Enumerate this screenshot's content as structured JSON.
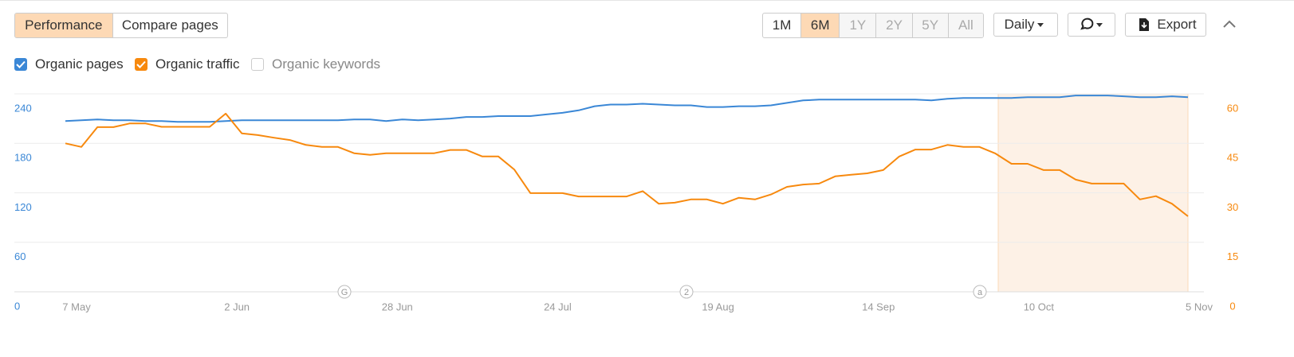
{
  "toolbar": {
    "tabs": [
      "Performance",
      "Compare pages"
    ],
    "ranges": [
      "1M",
      "6M",
      "1Y",
      "2Y",
      "5Y",
      "All"
    ],
    "interval": "Daily",
    "export": "Export"
  },
  "chart_data": {
    "type": "line",
    "categories": [
      "7 May",
      null,
      null,
      null,
      null,
      null,
      null,
      null,
      null,
      null,
      "2 Jun",
      null,
      null,
      null,
      null,
      null,
      null,
      null,
      null,
      null,
      "28 Jun",
      null,
      null,
      null,
      null,
      null,
      null,
      null,
      null,
      null,
      "24 Jul",
      null,
      null,
      null,
      null,
      null,
      null,
      null,
      null,
      null,
      "19 Aug",
      null,
      null,
      null,
      null,
      null,
      null,
      null,
      null,
      null,
      "14 Sep",
      null,
      null,
      null,
      null,
      null,
      null,
      null,
      null,
      null,
      "10 Oct",
      null,
      null,
      null,
      null,
      null,
      null,
      null,
      null,
      null,
      "5 Nov"
    ],
    "series": [
      {
        "name": "Organic pages",
        "color": "#3a87d6",
        "axis": "y",
        "values": [
          207,
          208,
          209,
          208,
          208,
          207,
          207,
          206,
          206,
          206,
          207,
          208,
          208,
          208,
          208,
          208,
          208,
          208,
          209,
          209,
          207,
          209,
          208,
          209,
          210,
          212,
          212,
          213,
          213,
          213,
          215,
          217,
          220,
          225,
          227,
          227,
          228,
          227,
          226,
          226,
          224,
          224,
          225,
          225,
          226,
          229,
          232,
          233,
          233,
          233,
          233,
          233,
          233,
          233,
          232,
          234,
          235,
          235,
          235,
          235,
          236,
          236,
          236,
          238,
          238,
          238,
          237,
          236,
          236,
          237,
          236
        ]
      },
      {
        "name": "Organic traffic",
        "color": "#f7890e",
        "axis": "y2",
        "values": [
          45,
          43.9,
          49.9,
          49.9,
          51,
          51,
          50,
          50,
          50,
          50,
          54,
          48,
          47.5,
          46.7,
          46,
          44.5,
          43.9,
          43.9,
          42,
          41.5,
          42,
          42,
          42,
          42,
          43,
          43,
          41,
          41,
          37,
          29.9,
          29.9,
          29.9,
          28.9,
          28.9,
          28.9,
          28.9,
          30.5,
          26.7,
          27,
          28,
          28,
          26.7,
          28.5,
          28,
          29.5,
          31.8,
          32.5,
          32.8,
          35,
          35.5,
          35.9,
          36.9,
          41,
          43.1,
          43.1,
          44.5,
          43.9,
          43.9,
          41.9,
          38.8,
          38.8,
          36.9,
          36.9,
          34,
          32.8,
          32.8,
          32.8,
          28,
          29,
          26.7,
          22.9
        ]
      }
    ],
    "hidden_series": [
      {
        "name": "Organic keywords"
      }
    ],
    "ylim": [
      0,
      240
    ],
    "yticks": [
      0,
      60,
      120,
      180,
      240
    ],
    "y2lim": [
      0,
      60
    ],
    "y2ticks": [
      0,
      15,
      30,
      45,
      60
    ],
    "annotations": [
      "G",
      "2",
      "a"
    ],
    "grid": true
  }
}
